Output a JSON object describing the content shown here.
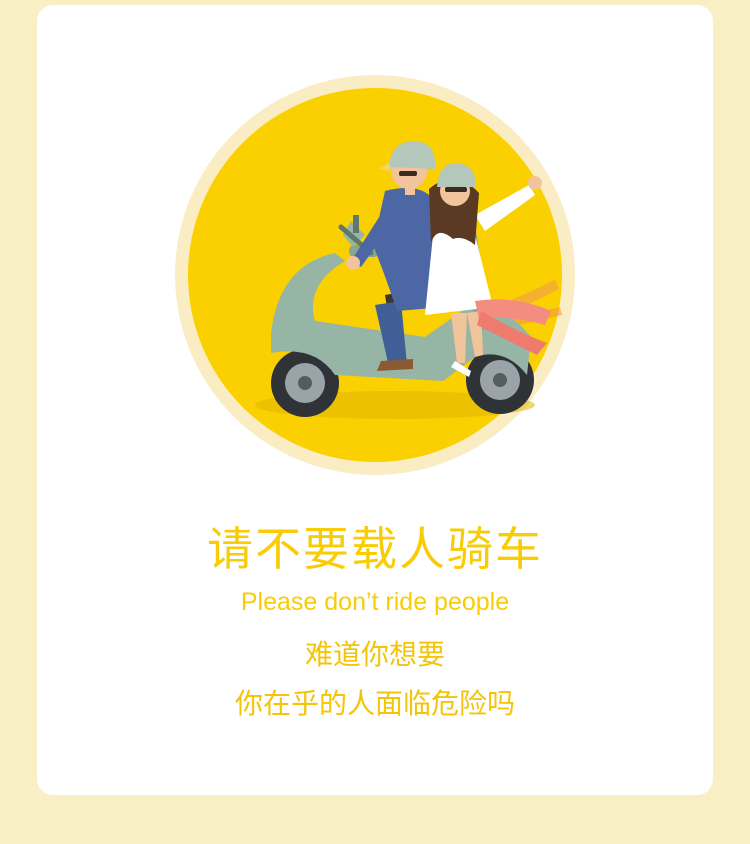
{
  "colors": {
    "page_background": "#f9efc4",
    "card_background": "#ffffff",
    "accent_yellow": "#f9cc06",
    "circle_fill": "#fbd000",
    "circle_ring": "#faedc4"
  },
  "illustration": {
    "icon": "couple-riding-scooter-illustration"
  },
  "content": {
    "title": "请不要载人骑车",
    "subtitle": "Please don’t ride people",
    "message_line1": "难道你想要",
    "message_line2": "你在乎的人面临危险吗"
  }
}
